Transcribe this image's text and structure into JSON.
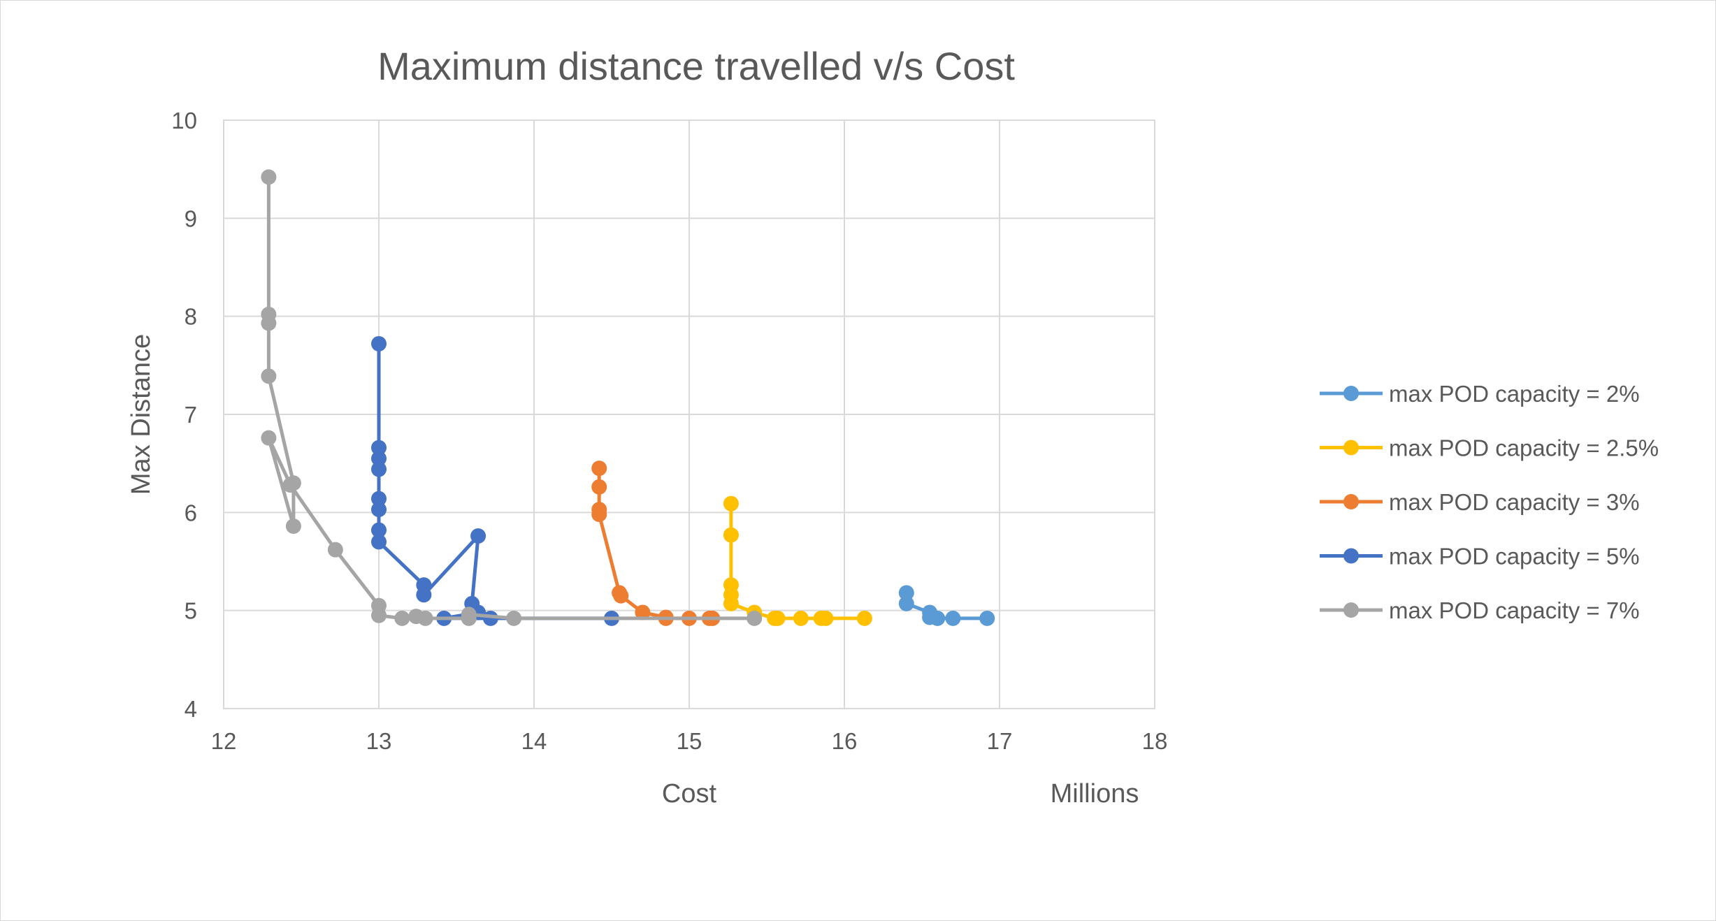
{
  "chart_data": {
    "type": "scatter",
    "title": "Maximum distance travelled v/s Cost",
    "xlabel": "Cost",
    "ylabel": "Max Distance",
    "x_unit_label": "Millions",
    "xlim": [
      12,
      18
    ],
    "ylim": [
      4,
      10
    ],
    "x_ticks": [
      "12",
      "13",
      "14",
      "15",
      "16",
      "17",
      "18"
    ],
    "y_ticks": [
      "4",
      "5",
      "6",
      "7",
      "8",
      "9",
      "10"
    ],
    "grid": true,
    "legend_position": "right",
    "markers": true,
    "series": [
      {
        "name": "max POD capacity = 2%",
        "color": "#5b9bd5",
        "points": [
          [
            16.4,
            5.18
          ],
          [
            16.4,
            5.07
          ],
          [
            16.55,
            4.98
          ],
          [
            16.55,
            4.93
          ],
          [
            16.6,
            4.92
          ],
          [
            16.7,
            4.92
          ],
          [
            16.92,
            4.92
          ]
        ]
      },
      {
        "name": "max POD capacity = 2.5%",
        "color": "#ffc000",
        "points": [
          [
            15.27,
            6.09
          ],
          [
            15.27,
            5.77
          ],
          [
            15.27,
            5.26
          ],
          [
            15.27,
            5.16
          ],
          [
            15.27,
            5.07
          ],
          [
            15.42,
            4.98
          ],
          [
            15.55,
            4.92
          ],
          [
            15.57,
            4.92
          ],
          [
            15.72,
            4.92
          ],
          [
            15.85,
            4.92
          ],
          [
            15.88,
            4.92
          ],
          [
            16.13,
            4.92
          ]
        ]
      },
      {
        "name": "max POD capacity = 3%",
        "color": "#ed7d31",
        "points": [
          [
            14.42,
            6.45
          ],
          [
            14.42,
            6.26
          ],
          [
            14.42,
            6.03
          ],
          [
            14.42,
            5.98
          ],
          [
            14.55,
            5.18
          ],
          [
            14.56,
            5.15
          ],
          [
            14.7,
            4.98
          ],
          [
            14.85,
            4.93
          ],
          [
            14.85,
            4.92
          ],
          [
            15.0,
            4.92
          ],
          [
            15.13,
            4.92
          ],
          [
            15.15,
            4.92
          ]
        ]
      },
      {
        "name": "max POD capacity = 5%",
        "color": "#4472c4",
        "points": [
          [
            13.0,
            7.72
          ],
          [
            13.0,
            6.66
          ],
          [
            13.0,
            6.55
          ],
          [
            13.0,
            6.44
          ],
          [
            13.0,
            6.14
          ],
          [
            13.0,
            6.03
          ],
          [
            13.0,
            5.82
          ],
          [
            13.0,
            5.7
          ],
          [
            13.29,
            5.26
          ],
          [
            13.29,
            5.16
          ],
          [
            13.64,
            5.76
          ],
          [
            13.6,
            5.07
          ],
          [
            13.64,
            4.98
          ],
          [
            13.42,
            4.92
          ],
          [
            13.72,
            4.92
          ],
          [
            14.5,
            4.92
          ]
        ]
      },
      {
        "name": "max POD capacity = 7%",
        "color": "#a5a5a5",
        "points": [
          [
            12.29,
            9.42
          ],
          [
            12.29,
            8.02
          ],
          [
            12.29,
            7.93
          ],
          [
            12.29,
            7.39
          ],
          [
            12.45,
            6.3
          ],
          [
            12.45,
            5.86
          ],
          [
            12.29,
            6.76
          ],
          [
            12.43,
            6.28
          ],
          [
            12.72,
            5.62
          ],
          [
            13.0,
            5.05
          ],
          [
            13.0,
            4.95
          ],
          [
            13.15,
            4.92
          ],
          [
            13.24,
            4.94
          ],
          [
            13.3,
            4.92
          ],
          [
            13.58,
            4.92
          ],
          [
            13.58,
            4.96
          ],
          [
            13.87,
            4.92
          ],
          [
            15.42,
            4.92
          ]
        ]
      }
    ]
  }
}
